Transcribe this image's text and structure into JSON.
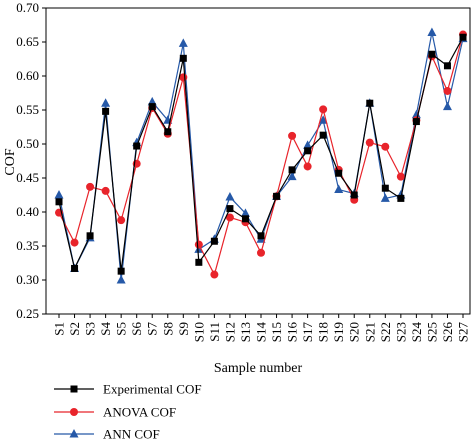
{
  "chart_data": {
    "type": "line",
    "title": "",
    "xlabel": "Sample number",
    "ylabel": "COF",
    "ylim": [
      0.25,
      0.7
    ],
    "yticks": [
      "0.25",
      "0.30",
      "0.35",
      "0.40",
      "0.45",
      "0.50",
      "0.55",
      "0.60",
      "0.65",
      "0.70"
    ],
    "grid": false,
    "legend_position": "bottom-left",
    "categories": [
      "S1",
      "S2",
      "S3",
      "S4",
      "S5",
      "S6",
      "S7",
      "S8",
      "S9",
      "S10",
      "S11",
      "S12",
      "S13",
      "S14",
      "S15",
      "S16",
      "S17",
      "S18",
      "S19",
      "S20",
      "S21",
      "S22",
      "S23",
      "S24",
      "S25",
      "S26",
      "S27"
    ],
    "series": [
      {
        "name": "Experimental COF",
        "color": "#000000",
        "marker": "square",
        "values": [
          0.415,
          0.317,
          0.365,
          0.548,
          0.313,
          0.497,
          0.555,
          0.518,
          0.626,
          0.326,
          0.357,
          0.405,
          0.39,
          0.365,
          0.423,
          0.462,
          0.49,
          0.513,
          0.457,
          0.425,
          0.56,
          0.435,
          0.42,
          0.533,
          0.632,
          0.615,
          0.657
        ]
      },
      {
        "name": "ANOVA COF",
        "color": "#e8242b",
        "marker": "circle",
        "values": [
          0.399,
          0.355,
          0.437,
          0.431,
          0.388,
          0.471,
          0.553,
          0.515,
          0.598,
          0.352,
          0.308,
          0.392,
          0.385,
          0.34,
          0.423,
          0.512,
          0.467,
          0.551,
          0.462,
          0.418,
          0.502,
          0.496,
          0.452,
          0.535,
          0.629,
          0.578,
          0.661
        ]
      },
      {
        "name": "ANN COF",
        "color": "#2659a8",
        "marker": "triangle",
        "values": [
          0.425,
          0.317,
          0.362,
          0.56,
          0.3,
          0.502,
          0.562,
          0.535,
          0.648,
          0.345,
          0.36,
          0.422,
          0.398,
          0.36,
          0.423,
          0.452,
          0.498,
          0.535,
          0.433,
          0.427,
          0.56,
          0.42,
          0.425,
          0.543,
          0.664,
          0.555,
          0.655
        ]
      }
    ]
  }
}
